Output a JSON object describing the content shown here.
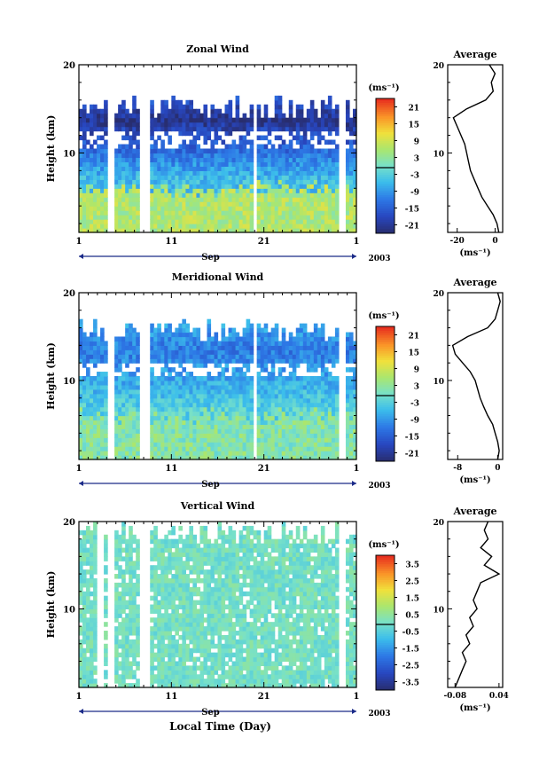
{
  "chart_data": [
    {
      "type": "heatmap",
      "title": "Zonal Wind",
      "ylabel": "Height (km)",
      "xlabel": "",
      "month_label": "Sep",
      "year_label": "2003",
      "x_ticks": [
        "1",
        "11",
        "21",
        "1"
      ],
      "xlim": [
        1,
        31
      ],
      "y_ticks": [
        "10",
        "20"
      ],
      "ylim": [
        1,
        20
      ],
      "colorbar": {
        "unit": "(ms⁻¹)",
        "ticks": [
          "21",
          "15",
          "9",
          "3",
          "-3",
          "-9",
          "-15",
          "-21"
        ],
        "range": [
          -24,
          24
        ]
      },
      "data_gaps_days": [
        [
          4.2,
          4.8
        ],
        [
          7.5,
          8.7
        ],
        [
          20.0,
          20.3
        ],
        [
          29.0,
          30.0
        ]
      ],
      "pattern": {
        "low_layer_top_km": 6.0,
        "low_layer_value": 6,
        "jet_center_km": 13.8,
        "jet_value": -22,
        "upper_top_km": 16.5
      },
      "average_profile": {
        "title": "Average",
        "xlabel": "(ms⁻¹)",
        "x_ticks": [
          "-20",
          "0"
        ],
        "xlim": [
          -25,
          4
        ],
        "y_ticks": [
          "10",
          "20"
        ],
        "ylim": [
          1,
          20
        ],
        "height_km": [
          1,
          2,
          3,
          4,
          5,
          6,
          7,
          8,
          9,
          10,
          11,
          12,
          13,
          14,
          15,
          16,
          17,
          18,
          19,
          20
        ],
        "wind": [
          2,
          1,
          -1,
          -4,
          -7,
          -9,
          -11,
          -13,
          -14,
          -15,
          -16,
          -18,
          -20,
          -22,
          -15,
          -5,
          -1,
          -2,
          0,
          -3
        ]
      }
    },
    {
      "type": "heatmap",
      "title": "Meridional Wind",
      "ylabel": "Height (km)",
      "xlabel": "",
      "month_label": "Sep",
      "year_label": "2003",
      "x_ticks": [
        "1",
        "11",
        "21",
        "1"
      ],
      "xlim": [
        1,
        31
      ],
      "y_ticks": [
        "10",
        "20"
      ],
      "ylim": [
        1,
        20
      ],
      "colorbar": {
        "unit": "(ms⁻¹)",
        "ticks": [
          "21",
          "15",
          "9",
          "3",
          "-3",
          "-9",
          "-15",
          "-21"
        ],
        "range": [
          -24,
          24
        ]
      },
      "data_gaps_days": [
        [
          4.2,
          4.8
        ],
        [
          7.5,
          8.7
        ],
        [
          20.0,
          20.3
        ],
        [
          29.0,
          30.0
        ]
      ],
      "pattern": {
        "low_layer_top_km": 6.0,
        "low_layer_value": 2,
        "jet_center_km": 13.5,
        "jet_value": -12,
        "upper_top_km": 17.0
      },
      "average_profile": {
        "title": "Average",
        "xlabel": "(ms⁻¹)",
        "x_ticks": [
          "-8",
          "0"
        ],
        "xlim": [
          -10,
          1
        ],
        "y_ticks": [
          "10",
          "20"
        ],
        "ylim": [
          1,
          20
        ],
        "height_km": [
          1,
          2,
          3,
          4,
          5,
          6,
          7,
          8,
          9,
          10,
          11,
          12,
          13,
          14,
          15,
          16,
          17,
          18,
          19,
          20
        ],
        "wind": [
          0,
          0.3,
          0,
          -0.5,
          -1,
          -2,
          -2.8,
          -3.5,
          -4,
          -4.5,
          -5.5,
          -7,
          -8.5,
          -9,
          -6,
          -2,
          -0.5,
          0,
          0.5,
          0
        ]
      }
    },
    {
      "type": "heatmap",
      "title": "Vertical Wind",
      "ylabel": "Height (km)",
      "xlabel": "Local Time (Day)",
      "month_label": "Sep",
      "year_label": "2003",
      "x_ticks": [
        "1",
        "11",
        "21",
        "1"
      ],
      "xlim": [
        1,
        31
      ],
      "y_ticks": [
        "10",
        "20"
      ],
      "ylim": [
        1,
        20
      ],
      "colorbar": {
        "unit": "(ms⁻¹)",
        "ticks": [
          "3.5",
          "2.5",
          "1.5",
          "0.5",
          "-0.5",
          "-1.5",
          "-2.5",
          "-3.5"
        ],
        "range": [
          -4,
          4
        ]
      },
      "data_gaps_days": [
        [
          3.0,
          3.5
        ],
        [
          4.2,
          4.8
        ],
        [
          7.5,
          8.7
        ],
        [
          29.0,
          30.0
        ]
      ],
      "pattern": {
        "low_layer_top_km": 14.0,
        "low_layer_value": 0,
        "jet_center_km": 14.5,
        "jet_value": 0,
        "upper_top_km": 20.0
      },
      "average_profile": {
        "title": "Average",
        "xlabel": "(ms⁻¹)",
        "x_ticks": [
          "-0.08",
          "0.04"
        ],
        "xlim": [
          -0.1,
          0.05
        ],
        "y_ticks": [
          "10",
          "20"
        ],
        "ylim": [
          1,
          20
        ],
        "height_km": [
          1,
          2,
          3,
          4,
          5,
          6,
          7,
          8,
          9,
          10,
          11,
          12,
          13,
          14,
          15,
          16,
          17,
          18,
          19,
          20
        ],
        "wind": [
          -0.08,
          -0.07,
          -0.06,
          -0.05,
          -0.06,
          -0.04,
          -0.05,
          -0.03,
          -0.04,
          -0.02,
          -0.03,
          -0.02,
          -0.01,
          0.04,
          0.0,
          0.02,
          -0.01,
          0.01,
          0.0,
          0.01
        ]
      }
    }
  ]
}
